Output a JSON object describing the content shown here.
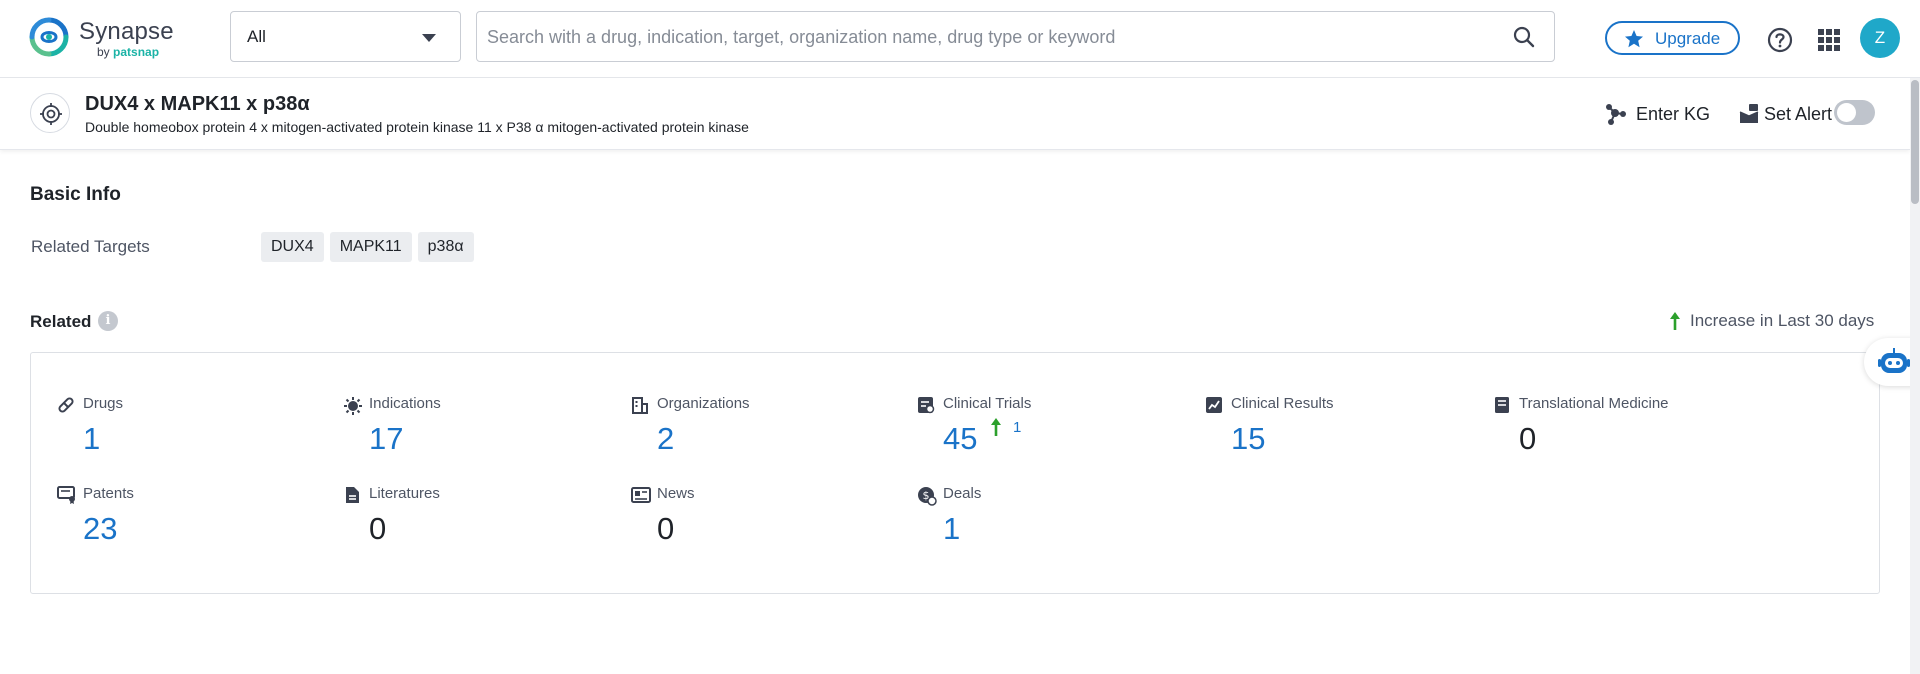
{
  "brand": {
    "name": "Synapse",
    "by_prefix": "by ",
    "by_name": "patsnap"
  },
  "search": {
    "scope_value": "All",
    "placeholder": "Search with a drug, indication, target, organization name, drug type or keyword"
  },
  "header_actions": {
    "upgrade_label": "Upgrade",
    "avatar_letter": "Z"
  },
  "entity": {
    "title": "DUX4 x MAPK11 x p38α",
    "subtitle": "Double homeobox protein 4 x mitogen-activated protein kinase 11 x P38 α mitogen-activated protein kinase",
    "enter_kg_label": "Enter KG",
    "set_alert_label": "Set Alert",
    "alert_enabled": false
  },
  "basic_info": {
    "title": "Basic Info",
    "related_targets_label": "Related Targets",
    "targets": [
      "DUX4",
      "MAPK11",
      "p38α"
    ]
  },
  "related": {
    "title": "Related",
    "increase_note": "Increase in Last 30 days",
    "stats": [
      {
        "label": "Drugs",
        "value": "1",
        "link": true,
        "icon": "pill-icon"
      },
      {
        "label": "Indications",
        "value": "17",
        "link": true,
        "icon": "virus-icon"
      },
      {
        "label": "Organizations",
        "value": "2",
        "link": true,
        "icon": "building-icon"
      },
      {
        "label": "Clinical Trials",
        "value": "45",
        "link": true,
        "icon": "clinical-trial-icon",
        "increase": "1"
      },
      {
        "label": "Clinical Results",
        "value": "15",
        "link": true,
        "icon": "chart-doc-icon"
      },
      {
        "label": "Translational Medicine",
        "value": "0",
        "link": false,
        "icon": "book-icon"
      },
      {
        "label": "Patents",
        "value": "23",
        "link": true,
        "icon": "patent-icon"
      },
      {
        "label": "Literatures",
        "value": "0",
        "link": false,
        "icon": "document-icon"
      },
      {
        "label": "News",
        "value": "0",
        "link": false,
        "icon": "newspaper-icon"
      },
      {
        "label": "Deals",
        "value": "1",
        "link": true,
        "icon": "deal-icon"
      }
    ]
  },
  "colors": {
    "accent": "#1a73c8",
    "increase": "#2ca02c",
    "avatar": "#1fa8c9",
    "teal": "#1bb3a6"
  }
}
